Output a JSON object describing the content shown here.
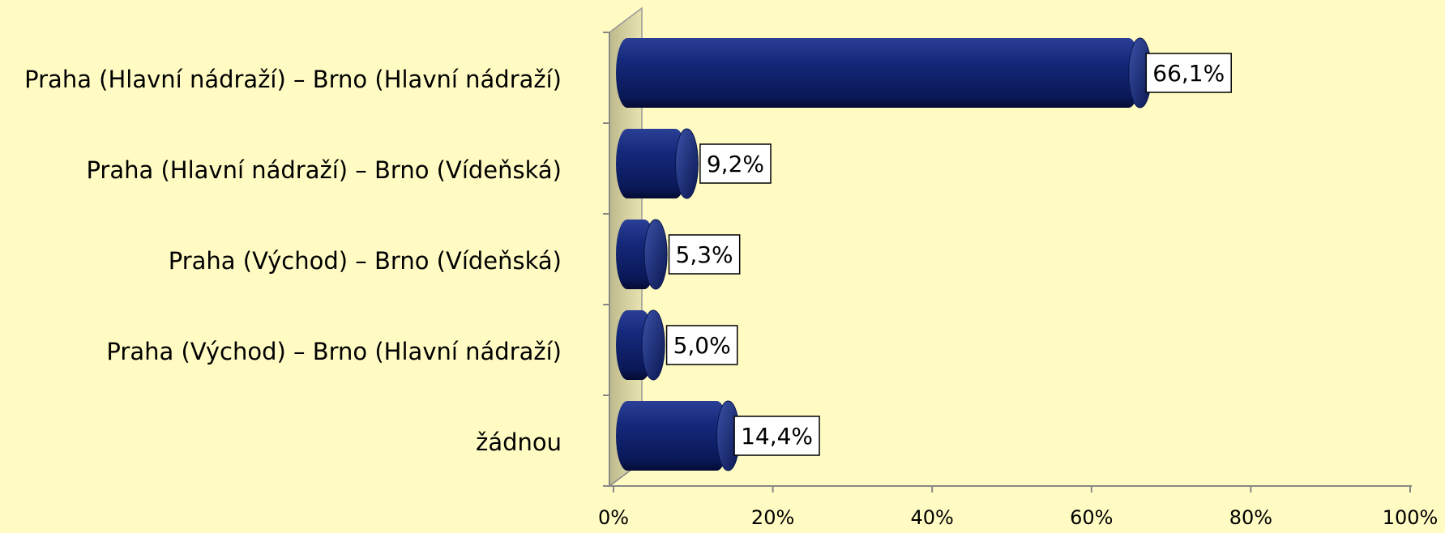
{
  "chart_data": {
    "type": "bar",
    "orientation": "horizontal",
    "categories": [
      "Praha (Hlavní nádraží) – Brno (Hlavní nádraží)",
      "Praha (Hlavní nádraží) – Brno (Vídeňská)",
      "Praha (Východ) – Brno (Vídeňská)",
      "Praha (Východ) – Brno (Hlavní nádraží)",
      "žádnou"
    ],
    "values": [
      66.1,
      9.2,
      5.3,
      5.0,
      14.4
    ],
    "value_labels": [
      "66,1%",
      "9,2%",
      "5,3%",
      "5,0%",
      "14,4%"
    ],
    "color": "#0d1f6e",
    "xlim": [
      0,
      100
    ],
    "xticks": [
      {
        "value": 0,
        "label": "0%"
      },
      {
        "value": 20,
        "label": "20%"
      },
      {
        "value": 40,
        "label": "40%"
      },
      {
        "value": 60,
        "label": "60%"
      },
      {
        "value": 80,
        "label": "80%"
      },
      {
        "value": 100,
        "label": "100%"
      }
    ]
  }
}
